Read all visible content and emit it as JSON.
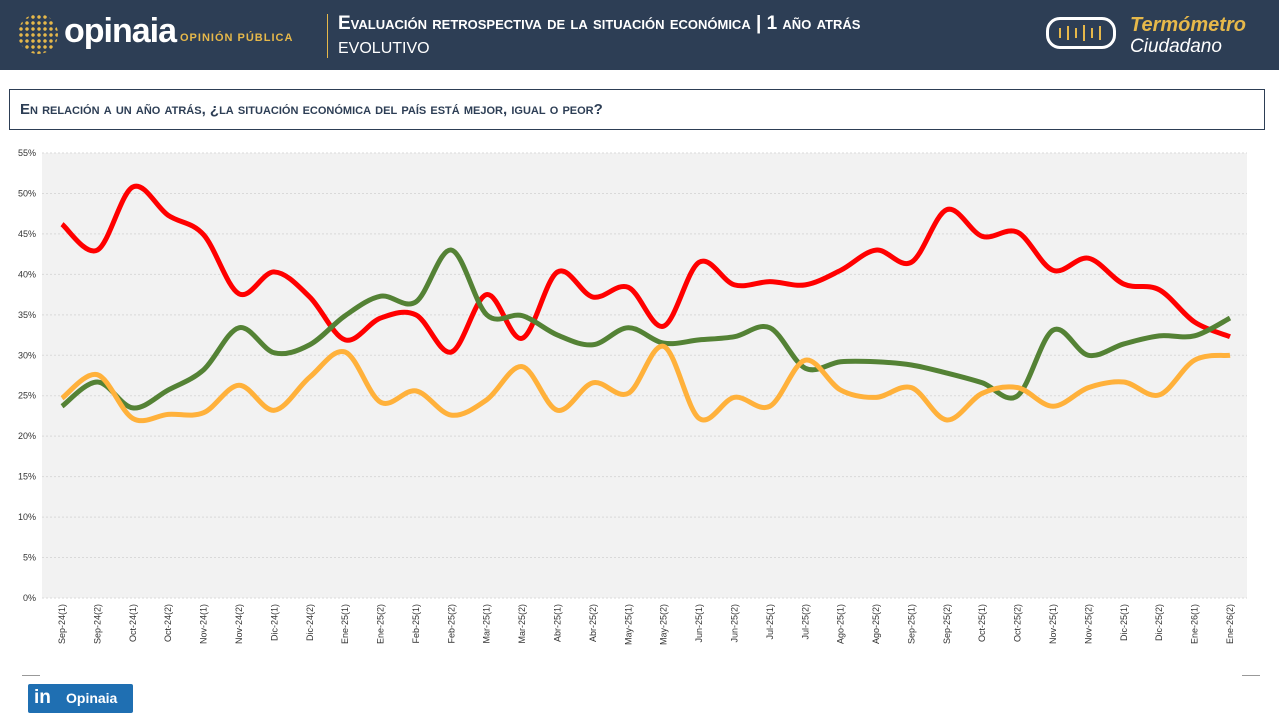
{
  "header": {
    "logo": "opinaia",
    "logo_sub": "OPINIÓN PÚBLICA",
    "title": "Evaluación retrospectiva de la situación económica | 1 año atrás",
    "subtitle": "EVOLUTIVO",
    "brand_line1": "Termómetro",
    "brand_line2": "Ciudadano"
  },
  "question": "En relación a un año atrás, ¿la situación económica del país está mejor, igual o peor?",
  "footer": {
    "linkedin_label": "Opinaia"
  },
  "chart_data": {
    "type": "line",
    "title": "",
    "xlabel": "",
    "ylabel": "",
    "ylim": [
      0,
      55
    ],
    "grid": true,
    "legend": "none",
    "yticks": [
      "0%",
      "5%",
      "10%",
      "15%",
      "20%",
      "25%",
      "30%",
      "35%",
      "40%",
      "45%",
      "50%",
      "55%"
    ],
    "categories": [
      "Sep-24(1)",
      "Sep-24(2)",
      "Oct-24(1)",
      "Oct-24(2)",
      "Nov-24(1)",
      "Nov-24(2)",
      "Dic-24(1)",
      "Dic-24(2)",
      "Ene-25(1)",
      "Ene-25(2)",
      "Feb-25(1)",
      "Feb-25(2)",
      "Mar-25(1)",
      "Mar-25(2)",
      "Abr-25(1)",
      "Abr-25(2)",
      "May-25(1)",
      "May-25(2)",
      "Jun-25(1)",
      "Jun-25(2)",
      "Jul-25(1)",
      "Jul-25(2)",
      "Ago-25(1)",
      "Ago-25(2)",
      "Sep-25(1)",
      "Sep-25(2)",
      "Oct-25(1)",
      "Oct-25(2)",
      "Nov-25(1)",
      "Nov-25(2)",
      "Dic-25(1)",
      "Dic-25(2)",
      "Ene-26(1)",
      "Ene-26(2)"
    ],
    "series": [
      {
        "color": "#ff0000",
        "values": [
          46.2,
          43.0,
          50.8,
          47.3,
          44.9,
          37.6,
          40.3,
          37.2,
          31.9,
          34.6,
          35.0,
          30.4,
          37.5,
          32.1,
          40.3,
          37.2,
          38.4,
          33.6,
          41.5,
          38.7,
          39.1,
          38.7,
          40.5,
          43.0,
          41.5,
          48.0,
          44.7,
          45.2,
          40.5,
          42.0,
          38.8,
          38.1,
          34.1,
          32.3
        ]
      },
      {
        "color": "#548235",
        "values": [
          23.7,
          26.7,
          23.5,
          25.7,
          28.2,
          33.4,
          30.3,
          31.3,
          34.9,
          37.3,
          36.6,
          43.0,
          35.0,
          34.9,
          32.5,
          31.3,
          33.4,
          31.5,
          31.9,
          32.3,
          33.4,
          28.4,
          29.2,
          29.2,
          28.8,
          27.8,
          26.6,
          25.0,
          33.1,
          30.0,
          31.4,
          32.4,
          32.4,
          34.6
        ]
      },
      {
        "color": "#ffb13b",
        "values": [
          24.7,
          27.6,
          22.2,
          22.7,
          22.9,
          26.3,
          23.2,
          27.3,
          30.4,
          24.2,
          25.6,
          22.6,
          24.5,
          28.6,
          23.2,
          26.6,
          25.3,
          31.1,
          22.2,
          24.8,
          23.7,
          29.4,
          25.7,
          24.8,
          26.0,
          22.0,
          25.3,
          26.0,
          23.7,
          26.0,
          26.7,
          25.1,
          29.4,
          30.0
        ]
      }
    ]
  }
}
